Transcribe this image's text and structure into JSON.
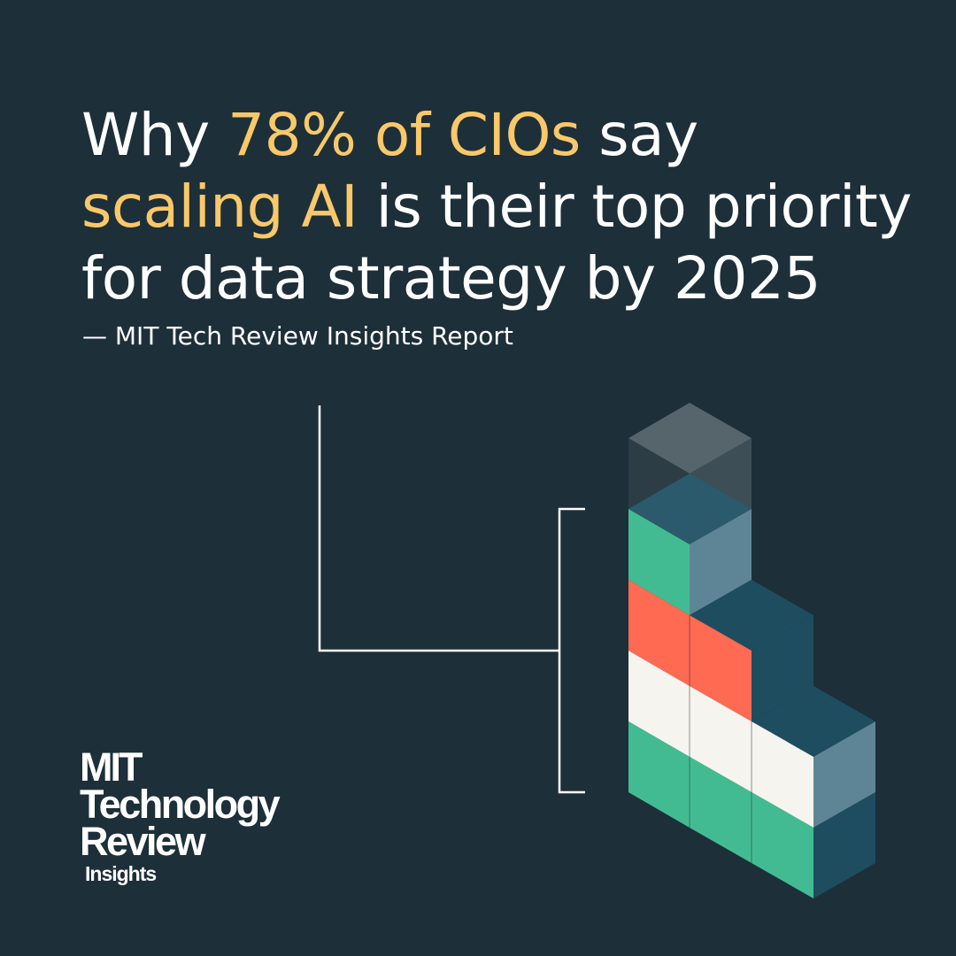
{
  "headline": {
    "line1_pre": "Why ",
    "line1_highlight": "78% of CIOs",
    "line1_post": " say",
    "line2_highlight": "scaling AI",
    "line2_post": " is their top priority",
    "line3": "for data strategy by 2025"
  },
  "attribution": "— MIT Tech Review Insights Report",
  "logo": {
    "line1": "MIT",
    "line2": "Technology",
    "line3": "Review",
    "line4": "Insights"
  },
  "colors": {
    "background": "#1d2f39",
    "highlight": "#f8c86a",
    "green": "#43bb92",
    "coral": "#ff6a52",
    "offwhite": "#f6f4ef",
    "slate": "#5e8595",
    "teal_dark": "#1e4d60"
  }
}
